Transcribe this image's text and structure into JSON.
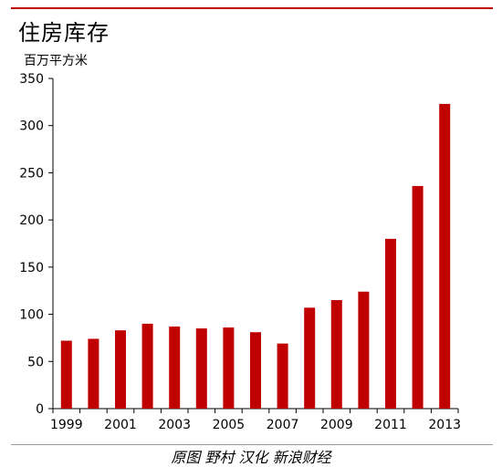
{
  "chart_data": {
    "type": "bar",
    "title": "住房库存",
    "unit_label": "百万平方米",
    "source": "原图 野村  汉化 新浪财经",
    "categories": [
      "1999",
      "2000",
      "2001",
      "2002",
      "2003",
      "2004",
      "2005",
      "2006",
      "2007",
      "2008",
      "2009",
      "2010",
      "2011",
      "2012",
      "2013"
    ],
    "x_tick_labels": [
      "1999",
      "2001",
      "2003",
      "2005",
      "2007",
      "2009",
      "2011",
      "2013"
    ],
    "values": [
      72,
      74,
      83,
      90,
      87,
      85,
      86,
      81,
      69,
      107,
      115,
      124,
      180,
      236,
      323
    ],
    "ylim": [
      0,
      350
    ],
    "y_ticks": [
      0,
      50,
      100,
      150,
      200,
      250,
      300,
      350
    ],
    "grid": false,
    "bar_color": "#c00000",
    "rule_color": "#c00000"
  }
}
